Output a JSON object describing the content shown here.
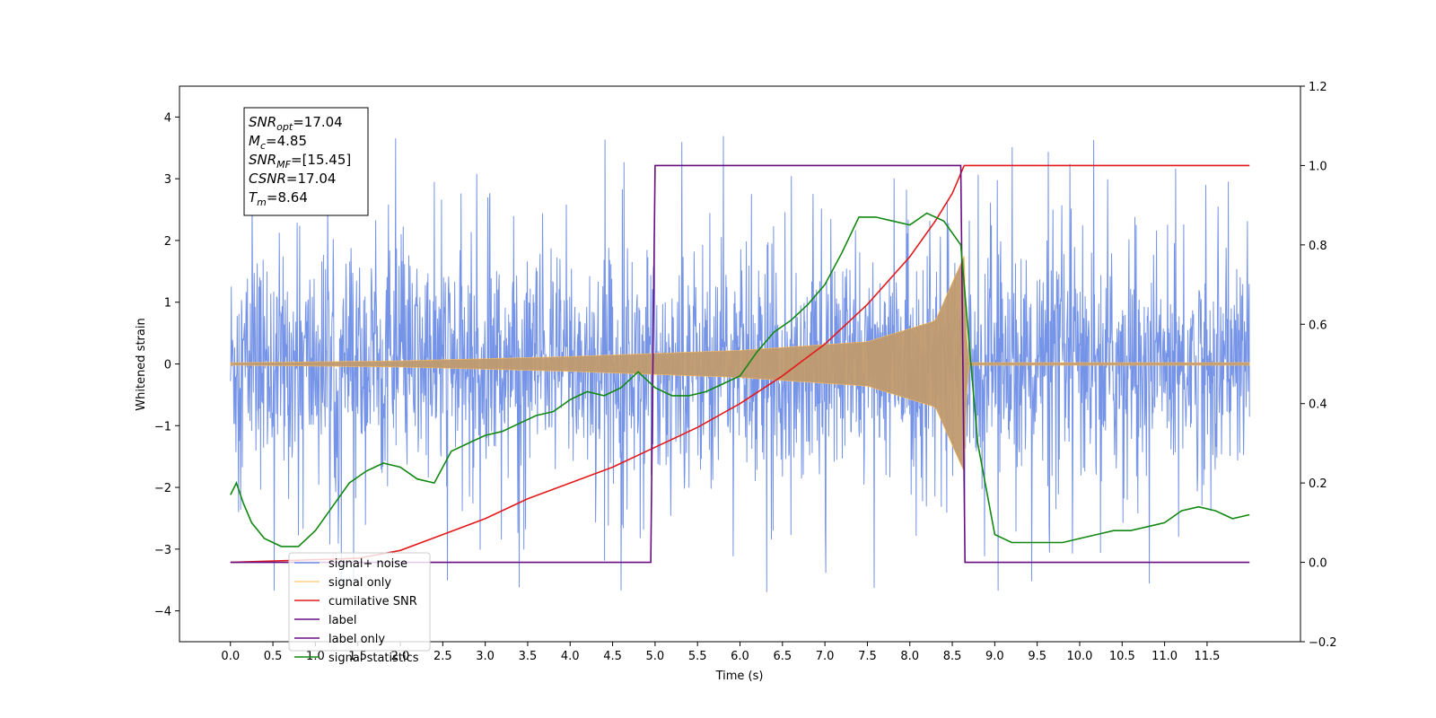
{
  "chart_data": {
    "type": "line",
    "xlabel": "Time (s)",
    "ylabel": "Whitened strain",
    "xlim": [
      -0.6,
      12.6
    ],
    "ylim": [
      -4.5,
      4.5
    ],
    "y2lim": [
      -0.2,
      1.2
    ],
    "x_ticks": [
      "0.0",
      "0.5",
      "1.0",
      "1.5",
      "2.0",
      "2.5",
      "3.0",
      "3.5",
      "4.0",
      "4.5",
      "5.0",
      "5.5",
      "6.0",
      "6.5",
      "7.0",
      "7.5",
      "8.0",
      "8.5",
      "9.0",
      "9.5",
      "10.0",
      "10.5",
      "11.0",
      "11.5"
    ],
    "y_ticks": [
      "4",
      "3",
      "2",
      "1",
      "0",
      "−1",
      "−2",
      "−3",
      "−4"
    ],
    "y2_ticks": [
      "1.2",
      "1.0",
      "0.8",
      "0.6",
      "0.4",
      "0.2",
      "0.0",
      "−0.2"
    ],
    "stats_box": [
      {
        "name": "SNR",
        "sub": "opt",
        "value": "=17.04"
      },
      {
        "name": "M",
        "sub": "c",
        "value": "=4.85"
      },
      {
        "name": "SNR",
        "sub": "MF",
        "value": "=[15.45]"
      },
      {
        "name": "CSNR",
        "sub": "",
        "value": "=17.04"
      },
      {
        "name": "T",
        "sub": "m",
        "value": "=8.64"
      }
    ],
    "legend": {
      "placement": "lower-left",
      "entries": [
        {
          "label": "signal+ noise",
          "color": "#6f8ee6"
        },
        {
          "label": "signal only",
          "color": "#ffbb55"
        },
        {
          "label": "cumilative SNR",
          "color": "#e31a1c"
        },
        {
          "label": "label",
          "color": "#6a0d83"
        },
        {
          "label": "label only",
          "color": "#6a0d83"
        },
        {
          "label": "signal statistics",
          "color": "#118811"
        }
      ]
    },
    "series": [
      {
        "name": "signal+ noise",
        "axis": "left",
        "kind": "noise",
        "x_range": [
          0.0,
          12.0
        ],
        "center": 0.0,
        "envelope": 2.3,
        "spikes_max": 4.0,
        "spikes_min": -3.8,
        "color": "#6f8ee6"
      },
      {
        "name": "signal only",
        "axis": "left",
        "kind": "chirp",
        "start": 0.0,
        "merger": 8.64,
        "end": 12.0,
        "amplitude": [
          [
            0.0,
            0.02
          ],
          [
            2.0,
            0.05
          ],
          [
            4.0,
            0.12
          ],
          [
            6.0,
            0.22
          ],
          [
            7.5,
            0.36
          ],
          [
            8.3,
            0.7
          ],
          [
            8.64,
            1.75
          ],
          [
            8.68,
            0.02
          ],
          [
            12.0,
            0.02
          ]
        ],
        "color": "#c09a6e"
      },
      {
        "name": "cumilative SNR",
        "axis": "right",
        "x": [
          0.0,
          1.5,
          2.0,
          2.5,
          3.0,
          3.5,
          4.0,
          4.5,
          5.0,
          5.5,
          6.0,
          6.5,
          7.0,
          7.5,
          8.0,
          8.3,
          8.5,
          8.64,
          9.0,
          10.0,
          11.0,
          12.0
        ],
        "y": [
          0.0,
          0.01,
          0.03,
          0.07,
          0.11,
          0.16,
          0.2,
          0.24,
          0.29,
          0.34,
          0.4,
          0.47,
          0.55,
          0.65,
          0.77,
          0.86,
          0.93,
          1.0,
          1.0,
          1.0,
          1.0,
          1.0
        ],
        "color": "#e31a1c"
      },
      {
        "name": "label",
        "axis": "right",
        "x": [
          0.0,
          4.95,
          5.0,
          8.6,
          8.65,
          12.0
        ],
        "y": [
          0.0,
          0.0,
          1.0,
          1.0,
          0.0,
          0.0
        ],
        "color": "#6a0d83"
      },
      {
        "name": "signal statistics",
        "axis": "right",
        "x": [
          0.0,
          0.07,
          0.15,
          0.25,
          0.4,
          0.6,
          0.8,
          1.0,
          1.2,
          1.4,
          1.6,
          1.8,
          2.0,
          2.2,
          2.4,
          2.6,
          2.8,
          3.0,
          3.2,
          3.4,
          3.6,
          3.8,
          4.0,
          4.2,
          4.4,
          4.6,
          4.8,
          5.0,
          5.2,
          5.4,
          5.6,
          5.8,
          6.0,
          6.2,
          6.4,
          6.6,
          6.8,
          7.0,
          7.2,
          7.4,
          7.6,
          7.8,
          8.0,
          8.2,
          8.4,
          8.6,
          8.8,
          9.0,
          9.2,
          9.4,
          9.6,
          9.8,
          10.0,
          10.2,
          10.4,
          10.6,
          10.8,
          11.0,
          11.2,
          11.4,
          11.6,
          11.8,
          12.0
        ],
        "y": [
          0.17,
          0.2,
          0.15,
          0.1,
          0.06,
          0.04,
          0.04,
          0.08,
          0.14,
          0.2,
          0.23,
          0.25,
          0.24,
          0.21,
          0.2,
          0.28,
          0.3,
          0.32,
          0.33,
          0.35,
          0.37,
          0.38,
          0.41,
          0.43,
          0.42,
          0.44,
          0.48,
          0.44,
          0.42,
          0.42,
          0.43,
          0.45,
          0.47,
          0.53,
          0.58,
          0.61,
          0.65,
          0.7,
          0.78,
          0.87,
          0.87,
          0.86,
          0.85,
          0.88,
          0.86,
          0.8,
          0.3,
          0.07,
          0.05,
          0.05,
          0.05,
          0.05,
          0.06,
          0.07,
          0.08,
          0.08,
          0.09,
          0.1,
          0.13,
          0.14,
          0.13,
          0.11,
          0.12
        ],
        "color": "#118811"
      }
    ]
  }
}
